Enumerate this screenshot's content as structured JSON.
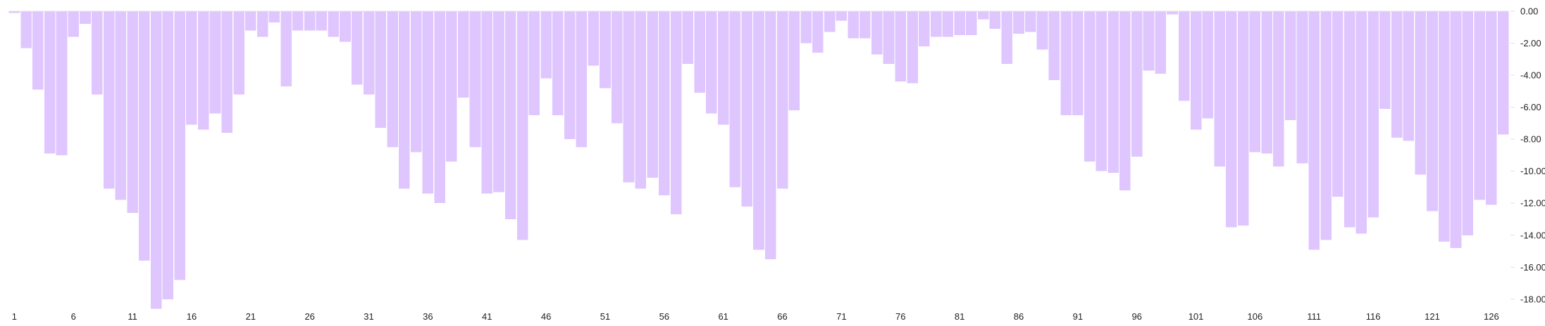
{
  "chart_data": {
    "type": "bar",
    "title": "",
    "xlabel": "",
    "ylabel": "",
    "bar_color": "#dfc6ff",
    "axis_color": "#e0e0e0",
    "text_color": "#222222",
    "background": "#ffffff",
    "ylim": [
      -19.5,
      0
    ],
    "y_ticks": [
      0,
      -2,
      -4,
      -6,
      -8,
      -10,
      -12,
      -14,
      -16,
      -18
    ],
    "y_tick_labels": [
      "0.00",
      "-2.00",
      "-4.00",
      "-6.00",
      "-8.00",
      "-10.00",
      "-12.00",
      "-14.00",
      "-16.00",
      "-18.00"
    ],
    "y_axis_position": "right",
    "grid": false,
    "legend": "none",
    "x_tick_labels": [
      "1",
      "6",
      "11",
      "16",
      "21",
      "26",
      "31",
      "36",
      "41",
      "46",
      "51",
      "56",
      "61",
      "66",
      "71",
      "76",
      "81",
      "86",
      "91",
      "96",
      "101",
      "106",
      "111",
      "116",
      "121",
      "126"
    ],
    "x_tick_every": 5,
    "x": [
      1,
      2,
      3,
      4,
      5,
      6,
      7,
      8,
      9,
      10,
      11,
      12,
      13,
      14,
      15,
      16,
      17,
      18,
      19,
      20,
      21,
      22,
      23,
      24,
      25,
      26,
      27,
      28,
      29,
      30,
      31,
      32,
      33,
      34,
      35,
      36,
      37,
      38,
      39,
      40,
      41,
      42,
      43,
      44,
      45,
      46,
      47,
      48,
      49,
      50,
      51,
      52,
      53,
      54,
      55,
      56,
      57,
      58,
      59,
      60,
      61,
      62,
      63,
      64,
      65,
      66,
      67,
      68,
      69,
      70,
      71,
      72,
      73,
      74,
      75,
      76,
      77,
      78,
      79,
      80,
      81,
      82,
      83,
      84,
      85,
      86,
      87,
      88,
      89,
      90,
      91,
      92,
      93,
      94,
      95,
      96,
      97,
      98,
      99,
      100,
      101,
      102,
      103,
      104,
      105,
      106,
      107,
      108,
      109,
      110,
      111,
      112,
      113,
      114,
      115,
      116,
      117,
      118,
      119,
      120,
      121,
      122,
      123,
      124,
      125,
      126,
      127
    ],
    "values": [
      -0.1,
      -2.3,
      -4.9,
      -8.9,
      -9.0,
      -1.6,
      -0.8,
      -5.2,
      -11.1,
      -11.8,
      -12.6,
      -15.6,
      -18.6,
      -18.0,
      -16.8,
      -7.1,
      -7.4,
      -6.4,
      -7.6,
      -5.2,
      -1.2,
      -1.6,
      -0.7,
      -4.7,
      -1.2,
      -1.2,
      -1.2,
      -1.6,
      -1.9,
      -4.6,
      -5.2,
      -7.3,
      -8.5,
      -11.1,
      -8.8,
      -11.4,
      -12.0,
      -9.4,
      -5.4,
      -8.5,
      -11.4,
      -11.3,
      -13.0,
      -14.3,
      -6.5,
      -4.2,
      -6.5,
      -8.0,
      -8.5,
      -3.4,
      -4.8,
      -7.0,
      -10.7,
      -11.1,
      -10.4,
      -11.5,
      -12.7,
      -3.3,
      -5.1,
      -6.4,
      -7.1,
      -11.0,
      -12.2,
      -14.9,
      -15.5,
      -11.1,
      -6.2,
      -2.0,
      -2.6,
      -1.3,
      -0.6,
      -1.7,
      -1.7,
      -2.7,
      -3.3,
      -4.4,
      -4.5,
      -2.2,
      -1.6,
      -1.6,
      -1.5,
      -1.5,
      -0.5,
      -1.1,
      -3.3,
      -1.4,
      -1.3,
      -2.4,
      -4.3,
      -6.5,
      -6.5,
      -9.4,
      -10.0,
      -10.1,
      -11.2,
      -9.1,
      -3.7,
      -3.9,
      -0.2,
      -5.6,
      -7.4,
      -6.7,
      -9.7,
      -13.5,
      -13.4,
      -8.8,
      -8.9,
      -9.7,
      -6.8,
      -9.5,
      -14.9,
      -14.3,
      -11.6,
      -13.5,
      -13.9,
      -12.9,
      -6.1,
      -7.9,
      -8.1,
      -10.2,
      -12.5,
      -14.4,
      -14.8,
      -14.0,
      -11.8,
      -12.1,
      -7.7
    ]
  }
}
